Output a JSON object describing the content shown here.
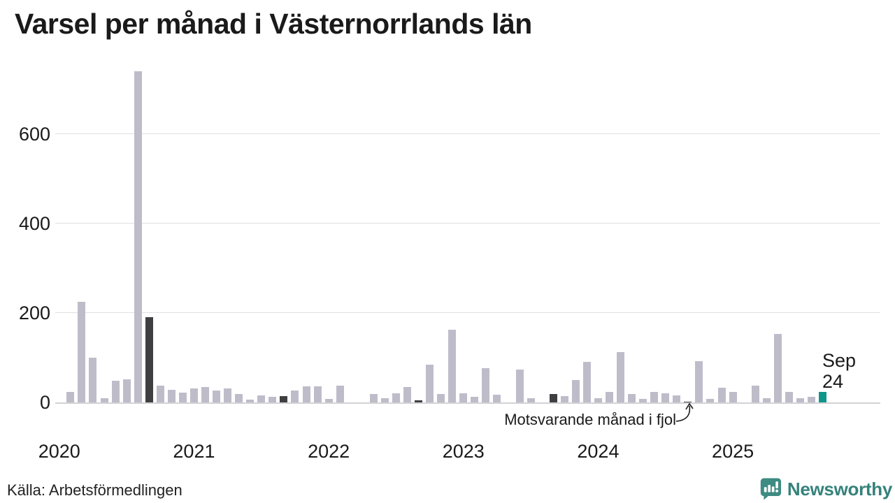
{
  "page_title": "Varsel per månad i Västernorrlands län",
  "source_label": "Källa: Arbetsförmedlingen",
  "branding": {
    "wordmark": "Newsworthy"
  },
  "annotation": {
    "text": "Motsvarande månad i fjol",
    "target_category": "2024-09"
  },
  "highlight_label": {
    "month": "Sep",
    "value": "24"
  },
  "colors": {
    "bar_default": "#bfbcca",
    "bar_september": "#3f3f41",
    "bar_current": "#0f968a",
    "gridline": "#e0e0e3",
    "axis_line": "#d2d2d6",
    "text": "#1a1a1a",
    "logo_bubble": "#3d8b82",
    "wordmark": "#35827b"
  },
  "chart_data": {
    "type": "bar",
    "title": "Varsel per månad i Västernorrlands län",
    "xlabel": "",
    "ylabel": "",
    "ylim": [
      0,
      750
    ],
    "yticks": [
      0,
      200,
      400,
      600
    ],
    "grid": "horizontal",
    "legend": "none",
    "year_labels": [
      "2020",
      "2021",
      "2022",
      "2023",
      "2024",
      "2025"
    ],
    "highlight_current": {
      "category": "2025-09",
      "value": 24
    },
    "categories": [
      "2020-01",
      "2020-02",
      "2020-03",
      "2020-04",
      "2020-05",
      "2020-06",
      "2020-07",
      "2020-08",
      "2020-09",
      "2020-10",
      "2020-11",
      "2020-12",
      "2021-01",
      "2021-02",
      "2021-03",
      "2021-04",
      "2021-05",
      "2021-06",
      "2021-07",
      "2021-08",
      "2021-09",
      "2021-10",
      "2021-11",
      "2021-12",
      "2022-01",
      "2022-02",
      "2022-03",
      "2022-04",
      "2022-05",
      "2022-06",
      "2022-07",
      "2022-08",
      "2022-09",
      "2022-10",
      "2022-11",
      "2022-12",
      "2023-01",
      "2023-02",
      "2023-03",
      "2023-04",
      "2023-05",
      "2023-06",
      "2023-07",
      "2023-08",
      "2023-09",
      "2023-10",
      "2023-11",
      "2023-12",
      "2024-01",
      "2024-02",
      "2024-03",
      "2024-04",
      "2024-05",
      "2024-06",
      "2024-07",
      "2024-08",
      "2024-09",
      "2024-10",
      "2024-11",
      "2024-12",
      "2025-01",
      "2025-02",
      "2025-03",
      "2025-04",
      "2025-05",
      "2025-06",
      "2025-07",
      "2025-08",
      "2025-09"
    ],
    "values": [
      0,
      23,
      225,
      100,
      9,
      48,
      52,
      740,
      190,
      38,
      28,
      22,
      31,
      34,
      27,
      32,
      19,
      6,
      15,
      13,
      14,
      26,
      36,
      36,
      8,
      38,
      0,
      0,
      19,
      9,
      21,
      34,
      5,
      85,
      19,
      163,
      20,
      12,
      76,
      17,
      0,
      73,
      9,
      0,
      18,
      14,
      50,
      90,
      9,
      24,
      112,
      19,
      8,
      23,
      20,
      15,
      2,
      92,
      8,
      33,
      24,
      0,
      38,
      9,
      153,
      23,
      9,
      12,
      24
    ]
  }
}
